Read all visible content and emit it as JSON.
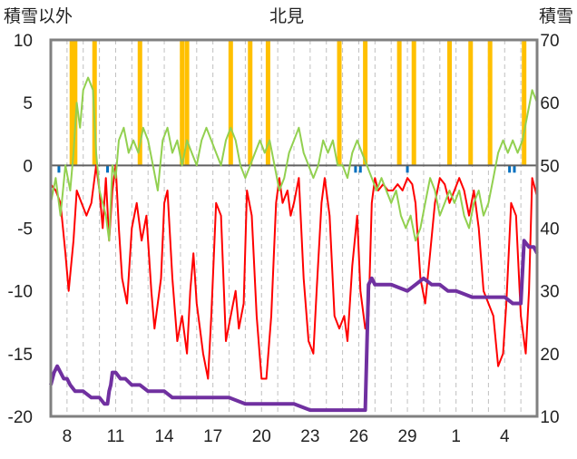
{
  "chart_data": {
    "type": "line",
    "title": "北見",
    "left_axis_label": "積雪以外",
    "right_axis_label": "積雪",
    "left_ylim": [
      -20,
      10
    ],
    "left_yticks": [
      "10",
      "5",
      "0",
      "-5",
      "-10",
      "-15",
      "-20"
    ],
    "right_ylim": [
      10,
      70
    ],
    "right_yticks": [
      "70",
      "60",
      "50",
      "40",
      "30",
      "20",
      "10"
    ],
    "x_range_days": [
      0,
      30
    ],
    "x_tick_labels": [
      "8",
      "11",
      "14",
      "17",
      "20",
      "23",
      "26",
      "29",
      "1",
      "4"
    ],
    "grid": "vertical dashed daily lines",
    "legend": "none",
    "colors": {
      "temperature": "#ff0000",
      "other": "#92d050",
      "precip_orange": "#ffc000",
      "precip_blue": "#0070c0",
      "snow_depth": "#7030a0",
      "zero_line": "#606060",
      "frame": "#808080",
      "grid": "#c0c0c0"
    },
    "series": [
      {
        "axis": "left",
        "color": "#ff0000",
        "points": [
          [
            0,
            -1.5
          ],
          [
            0.3,
            -2
          ],
          [
            0.6,
            -3
          ],
          [
            0.9,
            -7
          ],
          [
            1.1,
            -10
          ],
          [
            1.4,
            -6
          ],
          [
            1.6,
            -2
          ],
          [
            1.9,
            -3
          ],
          [
            2.2,
            -4
          ],
          [
            2.5,
            -3
          ],
          [
            2.8,
            0
          ],
          [
            3.0,
            -2
          ],
          [
            3.2,
            -5
          ],
          [
            3.4,
            -1
          ],
          [
            3.6,
            -6
          ],
          [
            3.8,
            -2
          ],
          [
            4.0,
            0
          ],
          [
            4.2,
            -5
          ],
          [
            4.4,
            -9
          ],
          [
            4.7,
            -11
          ],
          [
            5.0,
            -5
          ],
          [
            5.3,
            -3
          ],
          [
            5.6,
            -6
          ],
          [
            5.9,
            -4
          ],
          [
            6.2,
            -10
          ],
          [
            6.4,
            -13
          ],
          [
            6.6,
            -11
          ],
          [
            6.8,
            -9
          ],
          [
            7.0,
            -3
          ],
          [
            7.2,
            -2
          ],
          [
            7.5,
            -9
          ],
          [
            7.8,
            -14
          ],
          [
            8.1,
            -12
          ],
          [
            8.4,
            -15
          ],
          [
            8.6,
            -10
          ],
          [
            8.8,
            -7
          ],
          [
            9.0,
            -11
          ],
          [
            9.2,
            -13
          ],
          [
            9.4,
            -15
          ],
          [
            9.7,
            -17
          ],
          [
            9.9,
            -12
          ],
          [
            10.2,
            -3
          ],
          [
            10.5,
            -4
          ],
          [
            10.8,
            -14
          ],
          [
            11.1,
            -12
          ],
          [
            11.4,
            -10
          ],
          [
            11.6,
            -13
          ],
          [
            11.9,
            -11
          ],
          [
            12.1,
            -2
          ],
          [
            12.4,
            -4
          ],
          [
            12.7,
            -12
          ],
          [
            13.0,
            -17
          ],
          [
            13.3,
            -17
          ],
          [
            13.6,
            -12
          ],
          [
            13.9,
            -3
          ],
          [
            14.1,
            -1
          ],
          [
            14.3,
            -3
          ],
          [
            14.6,
            -2
          ],
          [
            14.8,
            -4
          ],
          [
            15.0,
            -3
          ],
          [
            15.3,
            -1
          ],
          [
            15.6,
            -9
          ],
          [
            15.9,
            -14
          ],
          [
            16.2,
            -15
          ],
          [
            16.4,
            -10
          ],
          [
            16.7,
            -3
          ],
          [
            16.9,
            -1
          ],
          [
            17.2,
            -4
          ],
          [
            17.5,
            -12
          ],
          [
            17.8,
            -13
          ],
          [
            18.1,
            -12
          ],
          [
            18.3,
            -14
          ],
          [
            18.6,
            -8
          ],
          [
            18.9,
            -4
          ],
          [
            19.1,
            -10
          ],
          [
            19.4,
            -13
          ],
          [
            19.6,
            -12
          ],
          [
            19.8,
            -3
          ],
          [
            20.0,
            -1
          ],
          [
            20.2,
            -2
          ],
          [
            20.5,
            -1.5
          ],
          [
            20.8,
            -2
          ],
          [
            21.1,
            -2
          ],
          [
            21.4,
            -1.5
          ],
          [
            21.7,
            -2
          ],
          [
            22.0,
            -1
          ],
          [
            22.3,
            -1.5
          ],
          [
            22.5,
            -3
          ],
          [
            22.8,
            -9
          ],
          [
            23.1,
            -11
          ],
          [
            23.4,
            -7
          ],
          [
            23.7,
            -3
          ],
          [
            24.0,
            -1
          ],
          [
            24.3,
            -1.5
          ],
          [
            24.6,
            -3
          ],
          [
            24.9,
            -2
          ],
          [
            25.2,
            -1
          ],
          [
            25.5,
            -2
          ],
          [
            25.8,
            -4
          ],
          [
            26.1,
            -2
          ],
          [
            26.4,
            -5
          ],
          [
            26.7,
            -10
          ],
          [
            27.0,
            -11
          ],
          [
            27.3,
            -12
          ],
          [
            27.6,
            -16
          ],
          [
            27.9,
            -15
          ],
          [
            28.1,
            -11
          ],
          [
            28.4,
            -3
          ],
          [
            28.7,
            -4
          ],
          [
            29.0,
            -12
          ],
          [
            29.3,
            -15
          ],
          [
            29.5,
            -10
          ],
          [
            29.7,
            -1
          ],
          [
            30,
            -2.5
          ]
        ]
      },
      {
        "axis": "left",
        "color": "#92d050",
        "points": [
          [
            0,
            -3
          ],
          [
            0.3,
            -1
          ],
          [
            0.6,
            -4
          ],
          [
            0.9,
            0
          ],
          [
            1.2,
            -2
          ],
          [
            1.4,
            1
          ],
          [
            1.6,
            5
          ],
          [
            1.8,
            3
          ],
          [
            2.0,
            6
          ],
          [
            2.3,
            7
          ],
          [
            2.6,
            6
          ],
          [
            2.8,
            1
          ],
          [
            3.0,
            -2
          ],
          [
            3.2,
            -3
          ],
          [
            3.4,
            -4
          ],
          [
            3.6,
            -6
          ],
          [
            3.8,
            0
          ],
          [
            4.0,
            -1
          ],
          [
            4.2,
            2
          ],
          [
            4.5,
            3
          ],
          [
            4.8,
            1
          ],
          [
            5.1,
            2
          ],
          [
            5.4,
            1
          ],
          [
            5.7,
            3
          ],
          [
            6.0,
            2
          ],
          [
            6.3,
            0
          ],
          [
            6.6,
            -2
          ],
          [
            6.9,
            2
          ],
          [
            7.2,
            3
          ],
          [
            7.5,
            1
          ],
          [
            7.8,
            2
          ],
          [
            8.1,
            0
          ],
          [
            8.4,
            2
          ],
          [
            8.7,
            1
          ],
          [
            9.0,
            0
          ],
          [
            9.3,
            2
          ],
          [
            9.6,
            3
          ],
          [
            9.9,
            2
          ],
          [
            10.2,
            1
          ],
          [
            10.5,
            0
          ],
          [
            10.8,
            2
          ],
          [
            11.1,
            3
          ],
          [
            11.4,
            2
          ],
          [
            11.7,
            0
          ],
          [
            12.0,
            -1
          ],
          [
            12.3,
            0
          ],
          [
            12.6,
            1
          ],
          [
            12.9,
            2
          ],
          [
            13.2,
            1
          ],
          [
            13.5,
            2
          ],
          [
            13.8,
            0
          ],
          [
            14.1,
            -2
          ],
          [
            14.4,
            -1
          ],
          [
            14.7,
            1
          ],
          [
            15.0,
            2
          ],
          [
            15.3,
            3
          ],
          [
            15.6,
            1
          ],
          [
            15.9,
            0
          ],
          [
            16.2,
            -1
          ],
          [
            16.5,
            0
          ],
          [
            16.8,
            2
          ],
          [
            17.1,
            1
          ],
          [
            17.4,
            2
          ],
          [
            17.7,
            0
          ],
          [
            18.0,
            0
          ],
          [
            18.3,
            -1
          ],
          [
            18.6,
            1
          ],
          [
            18.9,
            2
          ],
          [
            19.2,
            1
          ],
          [
            19.5,
            0
          ],
          [
            19.8,
            -1
          ],
          [
            20.1,
            -2
          ],
          [
            20.4,
            -1
          ],
          [
            20.7,
            -2
          ],
          [
            21.0,
            -3
          ],
          [
            21.3,
            -2
          ],
          [
            21.6,
            -4
          ],
          [
            21.9,
            -5
          ],
          [
            22.2,
            -4
          ],
          [
            22.5,
            -6
          ],
          [
            22.8,
            -5
          ],
          [
            23.1,
            -3
          ],
          [
            23.4,
            -1
          ],
          [
            23.7,
            -2
          ],
          [
            24.0,
            -4
          ],
          [
            24.3,
            -3
          ],
          [
            24.6,
            -2
          ],
          [
            24.9,
            -3
          ],
          [
            25.2,
            -2
          ],
          [
            25.5,
            -4
          ],
          [
            25.8,
            -5
          ],
          [
            26.1,
            -3
          ],
          [
            26.4,
            -2
          ],
          [
            26.7,
            -4
          ],
          [
            27.0,
            -3
          ],
          [
            27.3,
            -1
          ],
          [
            27.6,
            1
          ],
          [
            27.9,
            2
          ],
          [
            28.2,
            1
          ],
          [
            28.5,
            2
          ],
          [
            28.8,
            1
          ],
          [
            29.1,
            2
          ],
          [
            29.4,
            4
          ],
          [
            29.7,
            6
          ],
          [
            30,
            5
          ]
        ]
      },
      {
        "axis": "right",
        "color": "#7030a0",
        "points": [
          [
            0,
            15
          ],
          [
            0.2,
            17
          ],
          [
            0.4,
            18
          ],
          [
            0.6,
            17
          ],
          [
            0.8,
            16
          ],
          [
            1.0,
            16
          ],
          [
            1.2,
            15
          ],
          [
            1.5,
            14
          ],
          [
            2.0,
            14
          ],
          [
            2.5,
            13
          ],
          [
            3.0,
            13
          ],
          [
            3.3,
            12
          ],
          [
            3.5,
            12
          ],
          [
            3.6,
            14
          ],
          [
            3.7,
            15
          ],
          [
            3.8,
            17
          ],
          [
            4.0,
            17
          ],
          [
            4.3,
            16
          ],
          [
            4.6,
            16
          ],
          [
            5.0,
            15
          ],
          [
            5.5,
            15
          ],
          [
            6.0,
            14
          ],
          [
            6.5,
            14
          ],
          [
            7.0,
            14
          ],
          [
            7.5,
            13
          ],
          [
            8.0,
            13
          ],
          [
            9.0,
            13
          ],
          [
            10.0,
            13
          ],
          [
            11.0,
            13
          ],
          [
            12.0,
            12
          ],
          [
            13.0,
            12
          ],
          [
            14.0,
            12
          ],
          [
            15.0,
            12
          ],
          [
            16.0,
            11
          ],
          [
            17.0,
            11
          ],
          [
            18.0,
            11
          ],
          [
            18.5,
            11
          ],
          [
            19.0,
            11
          ],
          [
            19.4,
            11
          ],
          [
            19.6,
            31
          ],
          [
            19.8,
            32
          ],
          [
            20.0,
            31
          ],
          [
            21.0,
            31
          ],
          [
            22.0,
            30
          ],
          [
            22.5,
            31
          ],
          [
            23.0,
            32
          ],
          [
            23.5,
            31
          ],
          [
            24.0,
            31
          ],
          [
            24.5,
            30
          ],
          [
            25.0,
            30
          ],
          [
            26.0,
            29
          ],
          [
            27.0,
            29
          ],
          [
            28.0,
            29
          ],
          [
            28.5,
            28
          ],
          [
            29.0,
            28
          ],
          [
            29.2,
            38
          ],
          [
            29.5,
            37
          ],
          [
            29.8,
            37
          ],
          [
            30,
            36
          ]
        ]
      }
    ],
    "precipitation_bars": [
      {
        "color": "#ffc000",
        "x": [
          1.3,
          1.5,
          2.7,
          5.5,
          8.1,
          8.4,
          11.1,
          12.3,
          13.4,
          17.8,
          19.4,
          21.5,
          22.4,
          24.6,
          25.9,
          27.1,
          29.2
        ]
      },
      {
        "color": "#0070c0",
        "x": [
          0.5,
          3.5,
          18.8,
          19.1,
          22.0,
          28.3,
          28.6
        ]
      }
    ]
  }
}
